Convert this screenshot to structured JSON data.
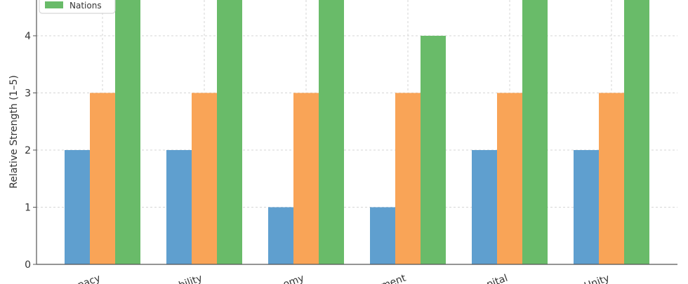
{
  "chart_data": {
    "type": "bar",
    "ylabel": "Relative Strength (1–5)",
    "ylim": [
      0,
      5
    ],
    "yticks": [
      0,
      1,
      2,
      3,
      4
    ],
    "grid": true,
    "legend_position": "top-left",
    "categories": [
      "pacy",
      "bility",
      "omy",
      "ment",
      "pital",
      "Unity"
    ],
    "series": [
      {
        "name": "",
        "color": "#5f9fcf",
        "values": [
          2,
          2,
          1,
          1,
          2,
          2
        ]
      },
      {
        "name": "",
        "color": "#f9a457",
        "values": [
          3,
          3,
          3,
          3,
          3,
          3
        ]
      },
      {
        "name": "Nations",
        "color": "#69bb69",
        "values": [
          5,
          5,
          5,
          4,
          5,
          5
        ]
      }
    ]
  }
}
